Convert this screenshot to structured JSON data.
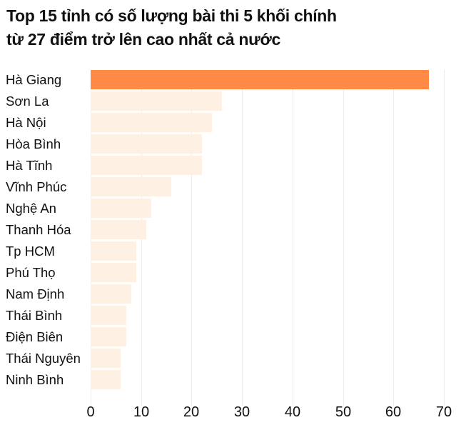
{
  "title": {
    "line1": "Top 15 tỉnh có số lượng bài thi 5 khối chính",
    "line2": "từ 27 điểm trở lên cao nhất cả nước"
  },
  "colors": {
    "highlight": "#ff8a45",
    "default_bar": "#fef0e3",
    "gridline": "#ececec",
    "text": "#111111"
  },
  "chart_data": {
    "type": "bar",
    "orientation": "horizontal",
    "title": "Top 15 tỉnh có số lượng bài thi 5 khối chính từ 27 điểm trở lên cao nhất cả nước",
    "xlabel": "",
    "ylabel": "",
    "categories": [
      "Hà Giang",
      "Sơn La",
      "Hà Nội",
      "Hòa Bình",
      "Hà Tĩnh",
      "Vĩnh Phúc",
      "Nghệ An",
      "Thanh Hóa",
      "Tp HCM",
      "Phú Thọ",
      "Nam Định",
      "Thái Bình",
      "Điện Biên",
      "Thái Nguyên",
      "Ninh Bình"
    ],
    "values": [
      67,
      26,
      24,
      22,
      22,
      16,
      12,
      11,
      9,
      9,
      8,
      7,
      7,
      6,
      6
    ],
    "highlighted": [
      "Hà Giang"
    ],
    "xlim": [
      0,
      70
    ],
    "xticks": [
      "0",
      "10",
      "20",
      "30",
      "40",
      "50",
      "60",
      "70"
    ],
    "grid": true,
    "legend": null
  }
}
